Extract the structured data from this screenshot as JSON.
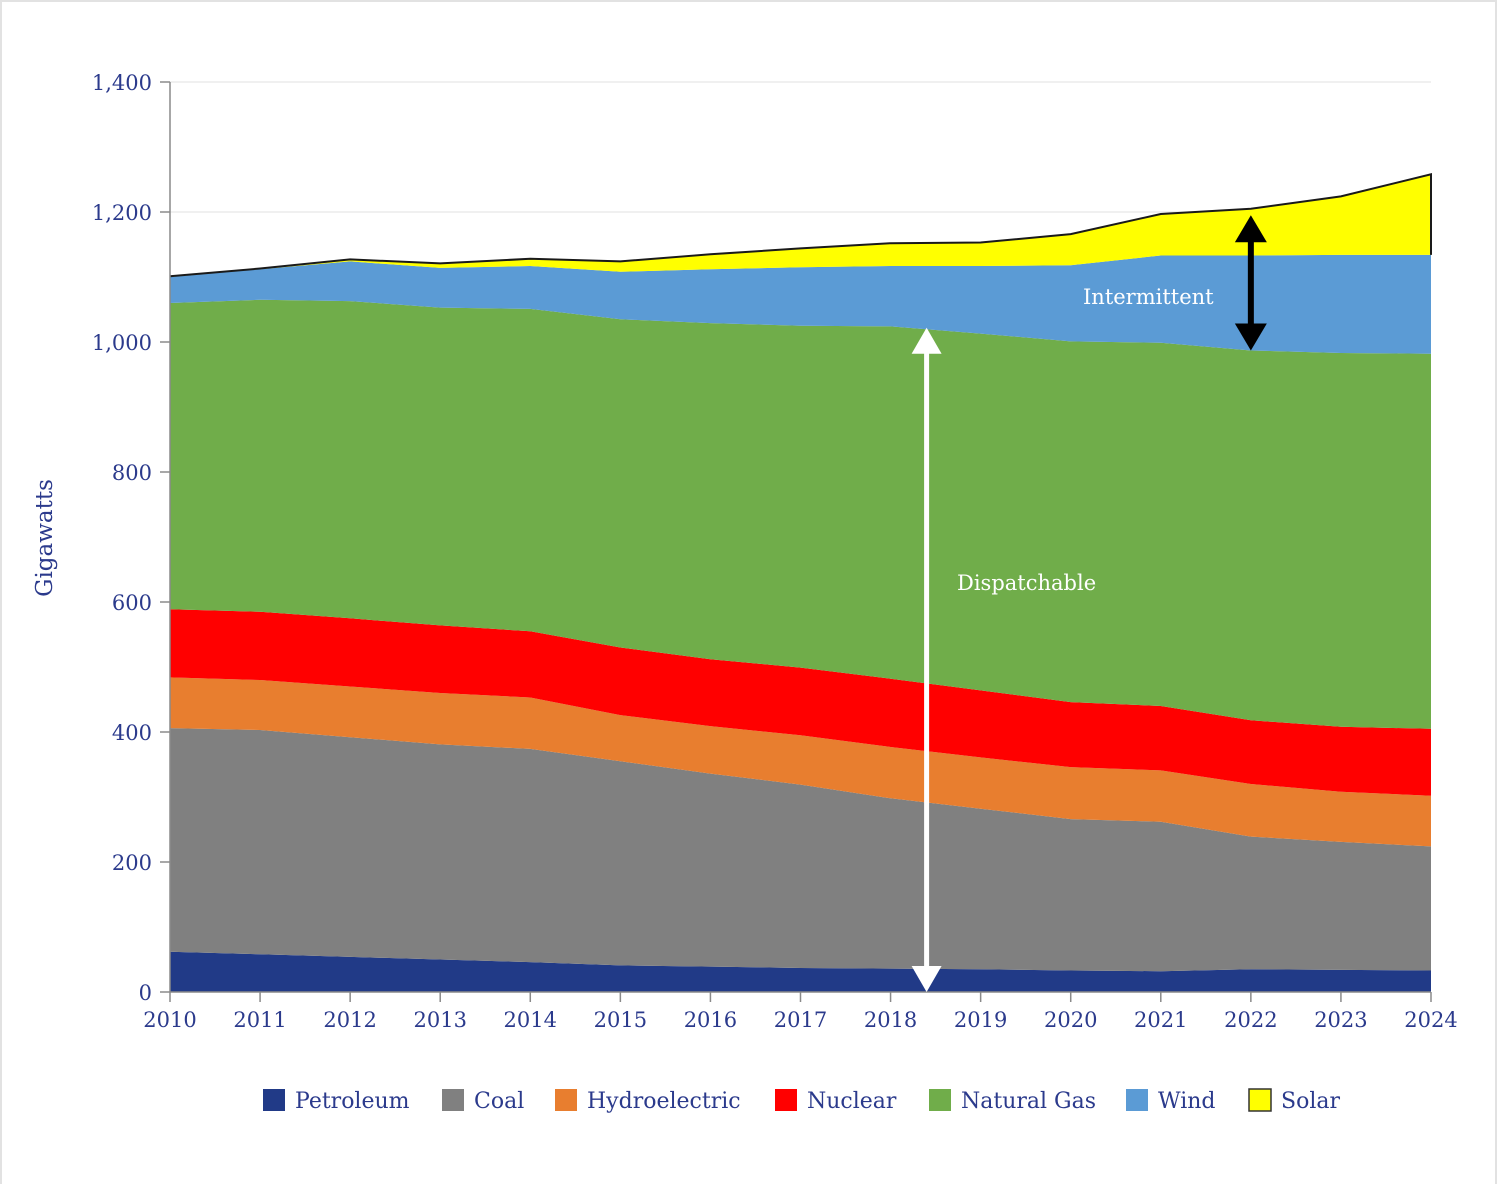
{
  "chart_data": {
    "type": "area",
    "stacked": true,
    "title": "",
    "xlabel": "",
    "ylabel": "Gigawatts",
    "ylim": [
      0,
      1400
    ],
    "yticks": [
      0,
      200,
      400,
      600,
      800,
      1000,
      1200,
      1400
    ],
    "ytick_labels": [
      "0",
      "200",
      "400",
      "600",
      "800",
      "1,000",
      "1,200",
      "1,400"
    ],
    "gridlines": [
      1200,
      1400
    ],
    "x": [
      2010,
      2011,
      2012,
      2013,
      2014,
      2015,
      2016,
      2017,
      2018,
      2019,
      2020,
      2021,
      2022,
      2023,
      2024
    ],
    "xtick_labels": [
      "2010",
      "2011",
      "2012",
      "2013",
      "2014",
      "2015",
      "2016",
      "2017",
      "2018",
      "2019",
      "2020",
      "2021",
      "2022",
      "2023",
      "2024"
    ],
    "legend_position": "bottom",
    "series": [
      {
        "name": "Petroleum",
        "color": "#213a87",
        "values": [
          62,
          58,
          54,
          50,
          46,
          41,
          39,
          37,
          36,
          35,
          33,
          32,
          35,
          34,
          33
        ]
      },
      {
        "name": "Coal",
        "color": "#808080",
        "values": [
          344,
          345,
          338,
          331,
          328,
          314,
          297,
          282,
          262,
          247,
          233,
          230,
          204,
          197,
          191
        ]
      },
      {
        "name": "Hydroelectric",
        "color": "#e87e2f",
        "values": [
          78,
          77,
          78,
          79,
          79,
          71,
          73,
          76,
          79,
          79,
          80,
          79,
          81,
          77,
          78
        ]
      },
      {
        "name": "Nuclear",
        "color": "#ff0000",
        "values": [
          105,
          105,
          105,
          104,
          102,
          104,
          103,
          104,
          105,
          103,
          100,
          99,
          98,
          100,
          103
        ]
      },
      {
        "name": "Natural Gas",
        "color": "#70ad4a",
        "values": [
          471,
          480,
          488,
          489,
          496,
          505,
          517,
          526,
          542,
          549,
          555,
          559,
          569,
          575,
          577
        ]
      },
      {
        "name": "Wind",
        "color": "#5b9bd5",
        "values": [
          40,
          47,
          61,
          61,
          66,
          73,
          83,
          90,
          93,
          104,
          117,
          134,
          146,
          151,
          152
        ]
      },
      {
        "name": "Solar",
        "color": "#ffff00",
        "values": [
          1,
          1,
          3,
          7,
          11,
          16,
          23,
          29,
          35,
          36,
          48,
          64,
          72,
          90,
          124
        ]
      }
    ],
    "annotations": [
      {
        "text": "Dispatchable",
        "arrow_color": "#ffffff",
        "x": 2018.4,
        "from": 0,
        "to": 1022
      },
      {
        "text": "Intermittent",
        "arrow_color": "#000000",
        "x": 2022.0,
        "from": 987,
        "to": 1195
      }
    ]
  }
}
